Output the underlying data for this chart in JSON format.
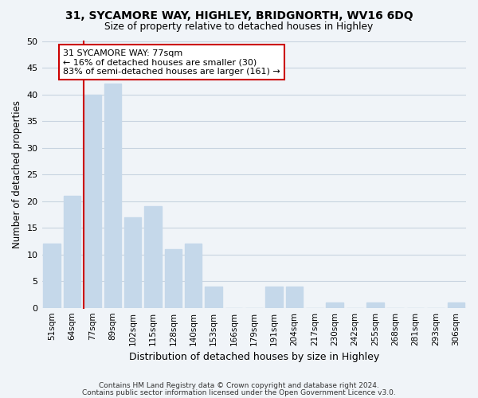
{
  "title": "31, SYCAMORE WAY, HIGHLEY, BRIDGNORTH, WV16 6DQ",
  "subtitle": "Size of property relative to detached houses in Highley",
  "xlabel": "Distribution of detached houses by size in Highley",
  "ylabel": "Number of detached properties",
  "bar_labels": [
    "51sqm",
    "64sqm",
    "77sqm",
    "89sqm",
    "102sqm",
    "115sqm",
    "128sqm",
    "140sqm",
    "153sqm",
    "166sqm",
    "179sqm",
    "191sqm",
    "204sqm",
    "217sqm",
    "230sqm",
    "242sqm",
    "255sqm",
    "268sqm",
    "281sqm",
    "293sqm",
    "306sqm"
  ],
  "bar_values": [
    12,
    21,
    40,
    42,
    17,
    19,
    11,
    12,
    4,
    0,
    0,
    4,
    4,
    0,
    1,
    0,
    1,
    0,
    0,
    0,
    1
  ],
  "bar_color": "#c5d8ea",
  "vline_index": 2,
  "vline_color": "#cc0000",
  "ylim": [
    0,
    50
  ],
  "yticks": [
    0,
    5,
    10,
    15,
    20,
    25,
    30,
    35,
    40,
    45,
    50
  ],
  "annotation_title": "31 SYCAMORE WAY: 77sqm",
  "annotation_line1": "← 16% of detached houses are smaller (30)",
  "annotation_line2": "83% of semi-detached houses are larger (161) →",
  "annotation_box_color": "#ffffff",
  "annotation_box_edge": "#cc0000",
  "footer1": "Contains HM Land Registry data © Crown copyright and database right 2024.",
  "footer2": "Contains public sector information licensed under the Open Government Licence v3.0.",
  "bg_color": "#f0f4f8",
  "plot_bg_color": "#f0f4f8",
  "grid_color": "#c8d4e0"
}
